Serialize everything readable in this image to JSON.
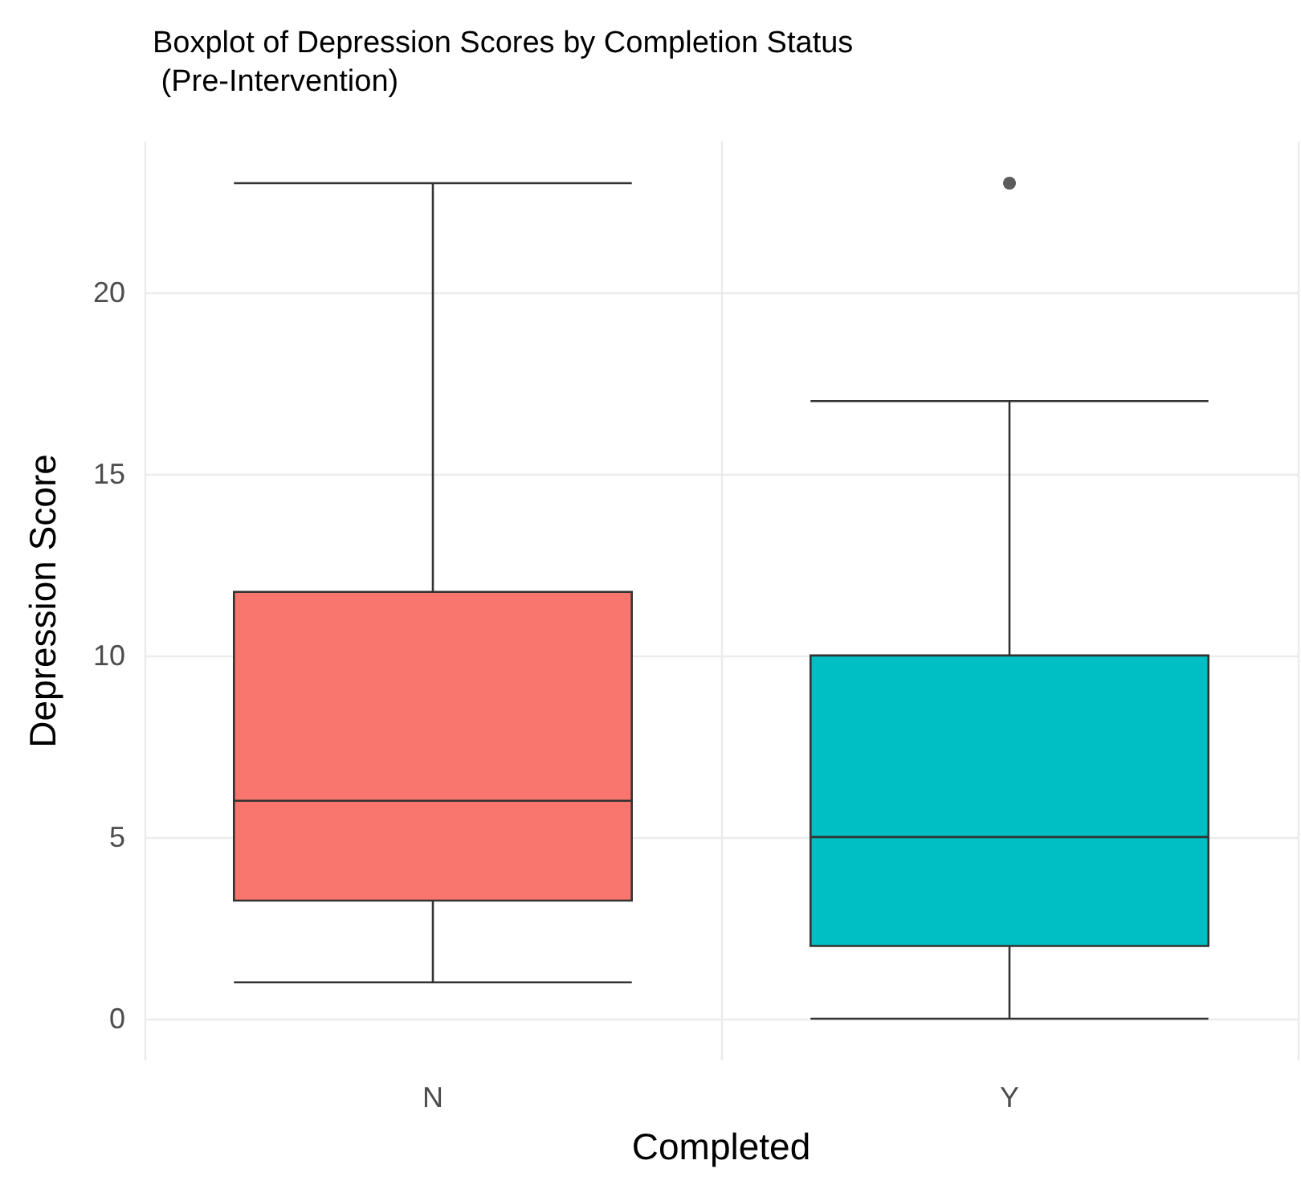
{
  "chart_data": {
    "type": "box",
    "title": "Boxplot of Depression Scores by Completion Status\n (Pre-Intervention)",
    "xlabel": "Completed",
    "ylabel": "Depression Score",
    "categories": [
      "N",
      "Y"
    ],
    "colors": [
      "#f8766d",
      "#00bfc4"
    ],
    "boxes": [
      {
        "low": 1,
        "q1": 3.25,
        "median": 6,
        "q3": 11.75,
        "high": 23
      },
      {
        "low": 0,
        "q1": 2,
        "median": 5,
        "q3": 10,
        "high": 17,
        "outliers": [
          23
        ]
      }
    ],
    "ylim": [
      -1.15,
      24.15
    ],
    "yticks": [
      0,
      5,
      10,
      15,
      20
    ],
    "grid": true
  }
}
